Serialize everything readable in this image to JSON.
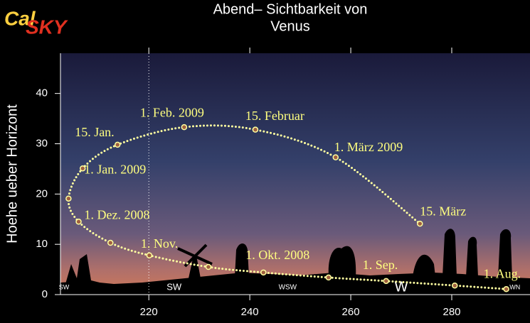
{
  "logo": {
    "part1": "Cal",
    "part2": "SKY"
  },
  "chart_data": {
    "type": "line",
    "title": "Abend– Sichtbarkeit von",
    "subtitle": "Venus",
    "y_label": "Hoehe ueber Horizont",
    "x": [
      290.8,
      280.6,
      267.0,
      255.6,
      242.7,
      231.8,
      220.1,
      212.4,
      206.1,
      204.1,
      206.9,
      213.8,
      227.0,
      241.1,
      257.0,
      273.7
    ],
    "values": [
      1.1,
      1.8,
      2.7,
      3.4,
      4.4,
      5.5,
      7.8,
      10.3,
      14.5,
      19.1,
      25.1,
      29.8,
      33.3,
      32.8,
      27.3,
      14.1
    ],
    "point_labels": [
      "1. Aug.",
      null,
      "1. Sep.",
      null,
      "1. Okt. 2008",
      null,
      "1. Nov.",
      null,
      "1. Dez. 2008",
      null,
      "1. Jan. 2009",
      "15. Jan.",
      "1. Feb. 2009",
      "15. Februar",
      "1. März 2009",
      "15. März"
    ],
    "color": "#ffffa0",
    "label_color": "#ffff80",
    "xlim": [
      202.5,
      295.5
    ],
    "xticks": [
      220,
      240,
      260,
      280
    ],
    "ylim": [
      0,
      48
    ],
    "yticks": [
      0,
      10,
      20,
      30,
      40
    ],
    "reference_x": 220,
    "compass": [
      {
        "value": 203.2,
        "label": "SW"
      },
      {
        "value": 225,
        "label": "SW"
      },
      {
        "value": 247.5,
        "label": "WSW"
      },
      {
        "value": 270,
        "label": "W"
      },
      {
        "value": 292.5,
        "label": "WN"
      }
    ]
  }
}
